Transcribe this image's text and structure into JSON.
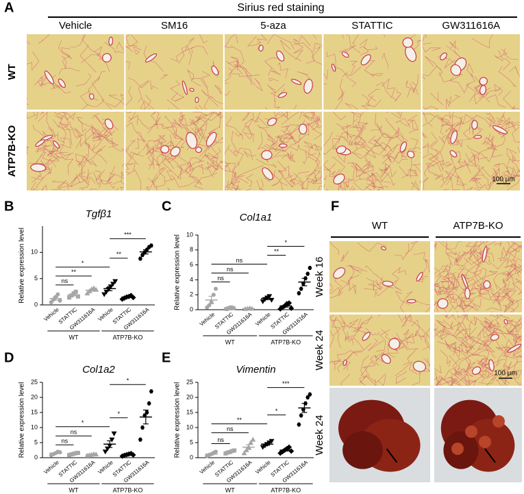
{
  "figure": {
    "panel_a": {
      "label": "A",
      "title": "Sirius red staining",
      "columns": [
        "Vehicle",
        "SM16",
        "5-aza",
        "STATTIC",
        "GW311616A"
      ],
      "rows": [
        "WT",
        "ATP7B-KO"
      ],
      "scale_bar": "100 µm"
    },
    "panel_f": {
      "label": "F",
      "columns": [
        "WT",
        "ATP7B-KO"
      ],
      "rows": [
        "Week 16",
        "Week 24",
        "Week 24"
      ],
      "scale_bar": "100 µm"
    }
  },
  "chart_data": [
    {
      "type": "dotplot",
      "panel": "B",
      "title": "Tgfβ1",
      "ylabel": "Relative expression level",
      "categories": [
        "Vehicle",
        "STATTIC",
        "GW311616A",
        "Vehicle",
        "STATTIC",
        "GW311616A"
      ],
      "groups": [
        "WT",
        "ATP7B-KO"
      ],
      "colors": [
        "#a6a6a6",
        "#a6a6a6",
        "#a6a6a6",
        "#000000",
        "#000000",
        "#000000"
      ],
      "points": [
        [
          0.5,
          1,
          1.5,
          2,
          0.8
        ],
        [
          1.4,
          1.8,
          2.2,
          2.5,
          1.6
        ],
        [
          2.2,
          2.6,
          3,
          3.2,
          2.9
        ],
        [
          2,
          2.5,
          3,
          3.5,
          4,
          4.5
        ],
        [
          1.1,
          1.3,
          1.5,
          1.6,
          1.8,
          1.4
        ],
        [
          8.8,
          9.5,
          10,
          10.5,
          11,
          11.3
        ]
      ],
      "means": [
        1.2,
        1.9,
        2.8,
        3.1,
        1.5,
        10.1
      ],
      "errors": [
        0.3,
        0.2,
        0.2,
        0.4,
        0.1,
        0.4
      ],
      "comparisons": [
        {
          "from": 0,
          "to": 1,
          "label": "ns"
        },
        {
          "from": 0,
          "to": 2,
          "label": "**"
        },
        {
          "from": 0,
          "to": 3,
          "label": "*"
        },
        {
          "from": 3,
          "to": 4,
          "label": "**"
        },
        {
          "from": 3,
          "to": 5,
          "label": "***"
        }
      ],
      "ylim": [
        0,
        15
      ],
      "yticks": [
        0,
        5,
        10
      ]
    },
    {
      "type": "dotplot",
      "panel": "C",
      "title": "Col1a1",
      "ylabel": "Relative expression level",
      "categories": [
        "Vehicle",
        "STATTIC",
        "GW311616A",
        "Vehicle",
        "STATTIC",
        "GW311616A"
      ],
      "groups": [
        "WT",
        "ATP7B-KO"
      ],
      "colors": [
        "#a6a6a6",
        "#a6a6a6",
        "#a6a6a6",
        "#000000",
        "#000000",
        "#000000"
      ],
      "points": [
        [
          0.3,
          0.6,
          1,
          2,
          2.8
        ],
        [
          0.1,
          0.2,
          0.3,
          0.2
        ],
        [
          0.1,
          0.15,
          0.2,
          0.15
        ],
        [
          1.1,
          1.4,
          1.6,
          1.8,
          1.3
        ],
        [
          0.1,
          0.3,
          0.5,
          0.8,
          0.9,
          0.2
        ],
        [
          2.2,
          2.8,
          3.5,
          4.2,
          4.8,
          5.6
        ]
      ],
      "means": [
        1.3,
        0.2,
        0.15,
        1.5,
        0.5,
        3.7
      ],
      "errors": [
        0.5,
        0.05,
        0.03,
        0.15,
        0.15,
        0.5
      ],
      "comparisons": [
        {
          "from": 0,
          "to": 1,
          "label": "ns"
        },
        {
          "from": 0,
          "to": 2,
          "label": "ns"
        },
        {
          "from": 0,
          "to": 3,
          "label": "ns"
        },
        {
          "from": 3,
          "to": 4,
          "label": "**"
        },
        {
          "from": 3,
          "to": 5,
          "label": "*"
        }
      ],
      "ylim": [
        0,
        10
      ],
      "yticks": [
        0,
        2,
        4,
        6,
        8,
        10
      ]
    },
    {
      "type": "dotplot",
      "panel": "D",
      "title": "Col1a2",
      "ylabel": "Relative expression level",
      "categories": [
        "Vehicle",
        "STATTIC",
        "GW311616A",
        "Vehicle",
        "STATTIC",
        "GW311616A"
      ],
      "groups": [
        "WT",
        "ATP7B-KO"
      ],
      "colors": [
        "#a6a6a6",
        "#a6a6a6",
        "#a6a6a6",
        "#000000",
        "#000000",
        "#000000"
      ],
      "points": [
        [
          0.8,
          1.2,
          1.5,
          2,
          1.8
        ],
        [
          0.9,
          1.1,
          1.3,
          1.5,
          1.6
        ],
        [
          0.7,
          0.9,
          1,
          1.2,
          1.1
        ],
        [
          2,
          3,
          4,
          6,
          8
        ],
        [
          0.5,
          0.8,
          1,
          1.2,
          1.4,
          0.9
        ],
        [
          6,
          10,
          14,
          15,
          18,
          22
        ]
      ],
      "means": [
        1.5,
        1.3,
        1,
        4.5,
        1,
        13.5
      ],
      "errors": [
        0.2,
        0.15,
        0.1,
        1.1,
        0.15,
        2.3
      ],
      "comparisons": [
        {
          "from": 0,
          "to": 1,
          "label": "ns"
        },
        {
          "from": 0,
          "to": 2,
          "label": "ns"
        },
        {
          "from": 0,
          "to": 3,
          "label": "*"
        },
        {
          "from": 3,
          "to": 4,
          "label": "*"
        },
        {
          "from": 3,
          "to": 5,
          "label": "*"
        }
      ],
      "ylim": [
        0,
        25
      ],
      "yticks": [
        0,
        5,
        10,
        15,
        20,
        25
      ]
    },
    {
      "type": "dotplot",
      "panel": "E",
      "title": "Vimentin",
      "ylabel": "Relative expression level",
      "categories": [
        "Vehicle",
        "STATTIC",
        "GW311616A",
        "Vehicle",
        "STATTIC",
        "GW311616A"
      ],
      "groups": [
        "WT",
        "ATP7B-KO"
      ],
      "colors": [
        "#a6a6a6",
        "#a6a6a6",
        "#a6a6a6",
        "#000000",
        "#000000",
        "#000000"
      ],
      "points": [
        [
          0.5,
          0.9,
          1.2,
          1.6,
          2
        ],
        [
          1.4,
          1.7,
          1.9,
          2.2,
          2.4
        ],
        [
          1.5,
          2.5,
          3.5,
          5,
          6
        ],
        [
          3.5,
          4,
          4.5,
          5,
          5.5
        ],
        [
          1.5,
          2,
          2.5,
          3,
          3.5,
          2.2
        ],
        [
          11,
          14,
          16,
          18,
          20,
          21
        ]
      ],
      "means": [
        1.2,
        1.9,
        3.5,
        4.5,
        2.5,
        16.5
      ],
      "errors": [
        0.3,
        0.2,
        0.8,
        0.4,
        0.3,
        1.5
      ],
      "comparisons": [
        {
          "from": 0,
          "to": 1,
          "label": "ns"
        },
        {
          "from": 0,
          "to": 2,
          "label": "ns"
        },
        {
          "from": 0,
          "to": 3,
          "label": "**"
        },
        {
          "from": 3,
          "to": 4,
          "label": "*"
        },
        {
          "from": 3,
          "to": 5,
          "label": "***"
        }
      ],
      "ylim": [
        0,
        25
      ],
      "yticks": [
        0,
        5,
        10,
        15,
        20,
        25
      ]
    }
  ]
}
